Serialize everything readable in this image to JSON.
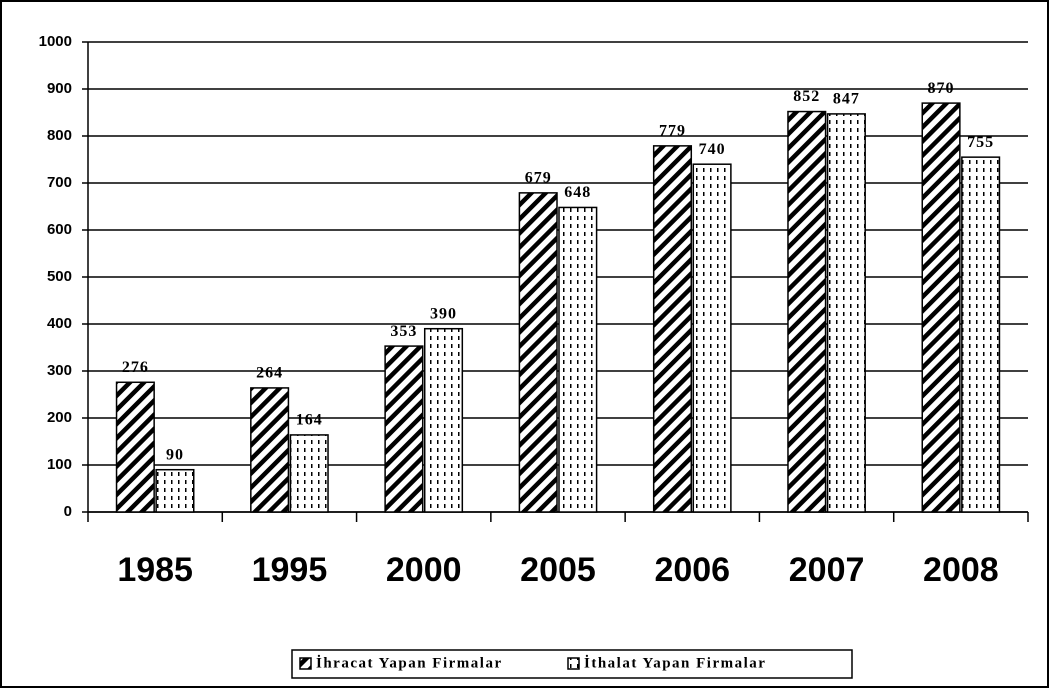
{
  "chart_data": {
    "type": "bar",
    "categories": [
      "1985",
      "1995",
      "2000",
      "2005",
      "2006",
      "2007",
      "2008"
    ],
    "series": [
      {
        "name": "İhracat Yapan Firmalar",
        "color": "#000000",
        "values": [
          276,
          264,
          353,
          679,
          779,
          852,
          870
        ]
      },
      {
        "name": "İthalat Yapan Firmalar",
        "color": "#000000",
        "values": [
          90,
          164,
          390,
          648,
          740,
          847,
          755
        ]
      }
    ],
    "ylim": [
      0,
      1000
    ],
    "yticks": [
      0,
      100,
      200,
      300,
      400,
      500,
      600,
      700,
      800,
      900,
      1000
    ],
    "grid": true,
    "legend": "bottom"
  }
}
